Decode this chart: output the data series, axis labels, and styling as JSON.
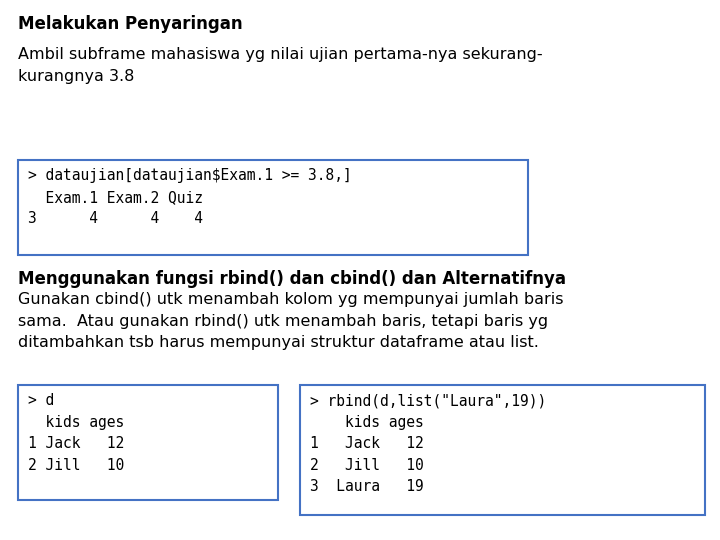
{
  "title": "Melakukan Penyaringan",
  "para1": "Ambil subframe mahasiswa yg nilai ujian pertama-nya sekurang-\nkurangnya 3.8",
  "code1": "> dataujian[dataujian$Exam.1 >= 3.8,]\n  Exam.1 Exam.2 Quiz\n3      4      4    4",
  "title2": "Menggunakan fungsi rbind() dan cbind() dan Alternatifnya",
  "para2": "Gunakan cbind() utk menambah kolom yg mempunyai jumlah baris\nsama.  Atau gunakan rbind() utk menambah baris, tetapi baris yg\nditambahkan tsb harus mempunyai struktur dataframe atau list.",
  "code2_left": "> d\n  kids ages\n1 Jack   12\n2 Jill   10",
  "code2_right": "> rbind(d,list(\"Laura\",19))\n    kids ages\n1   Jack   12\n2   Jill   10\n3  Laura   19",
  "bg_color": "#ffffff",
  "text_color": "#000000",
  "code_bg": "#ffffff",
  "code_border": "#4472c4",
  "mono_font": "DejaVu Sans Mono",
  "title_fontsize": 12,
  "body_fontsize": 11.5,
  "code_fontsize": 10.5
}
